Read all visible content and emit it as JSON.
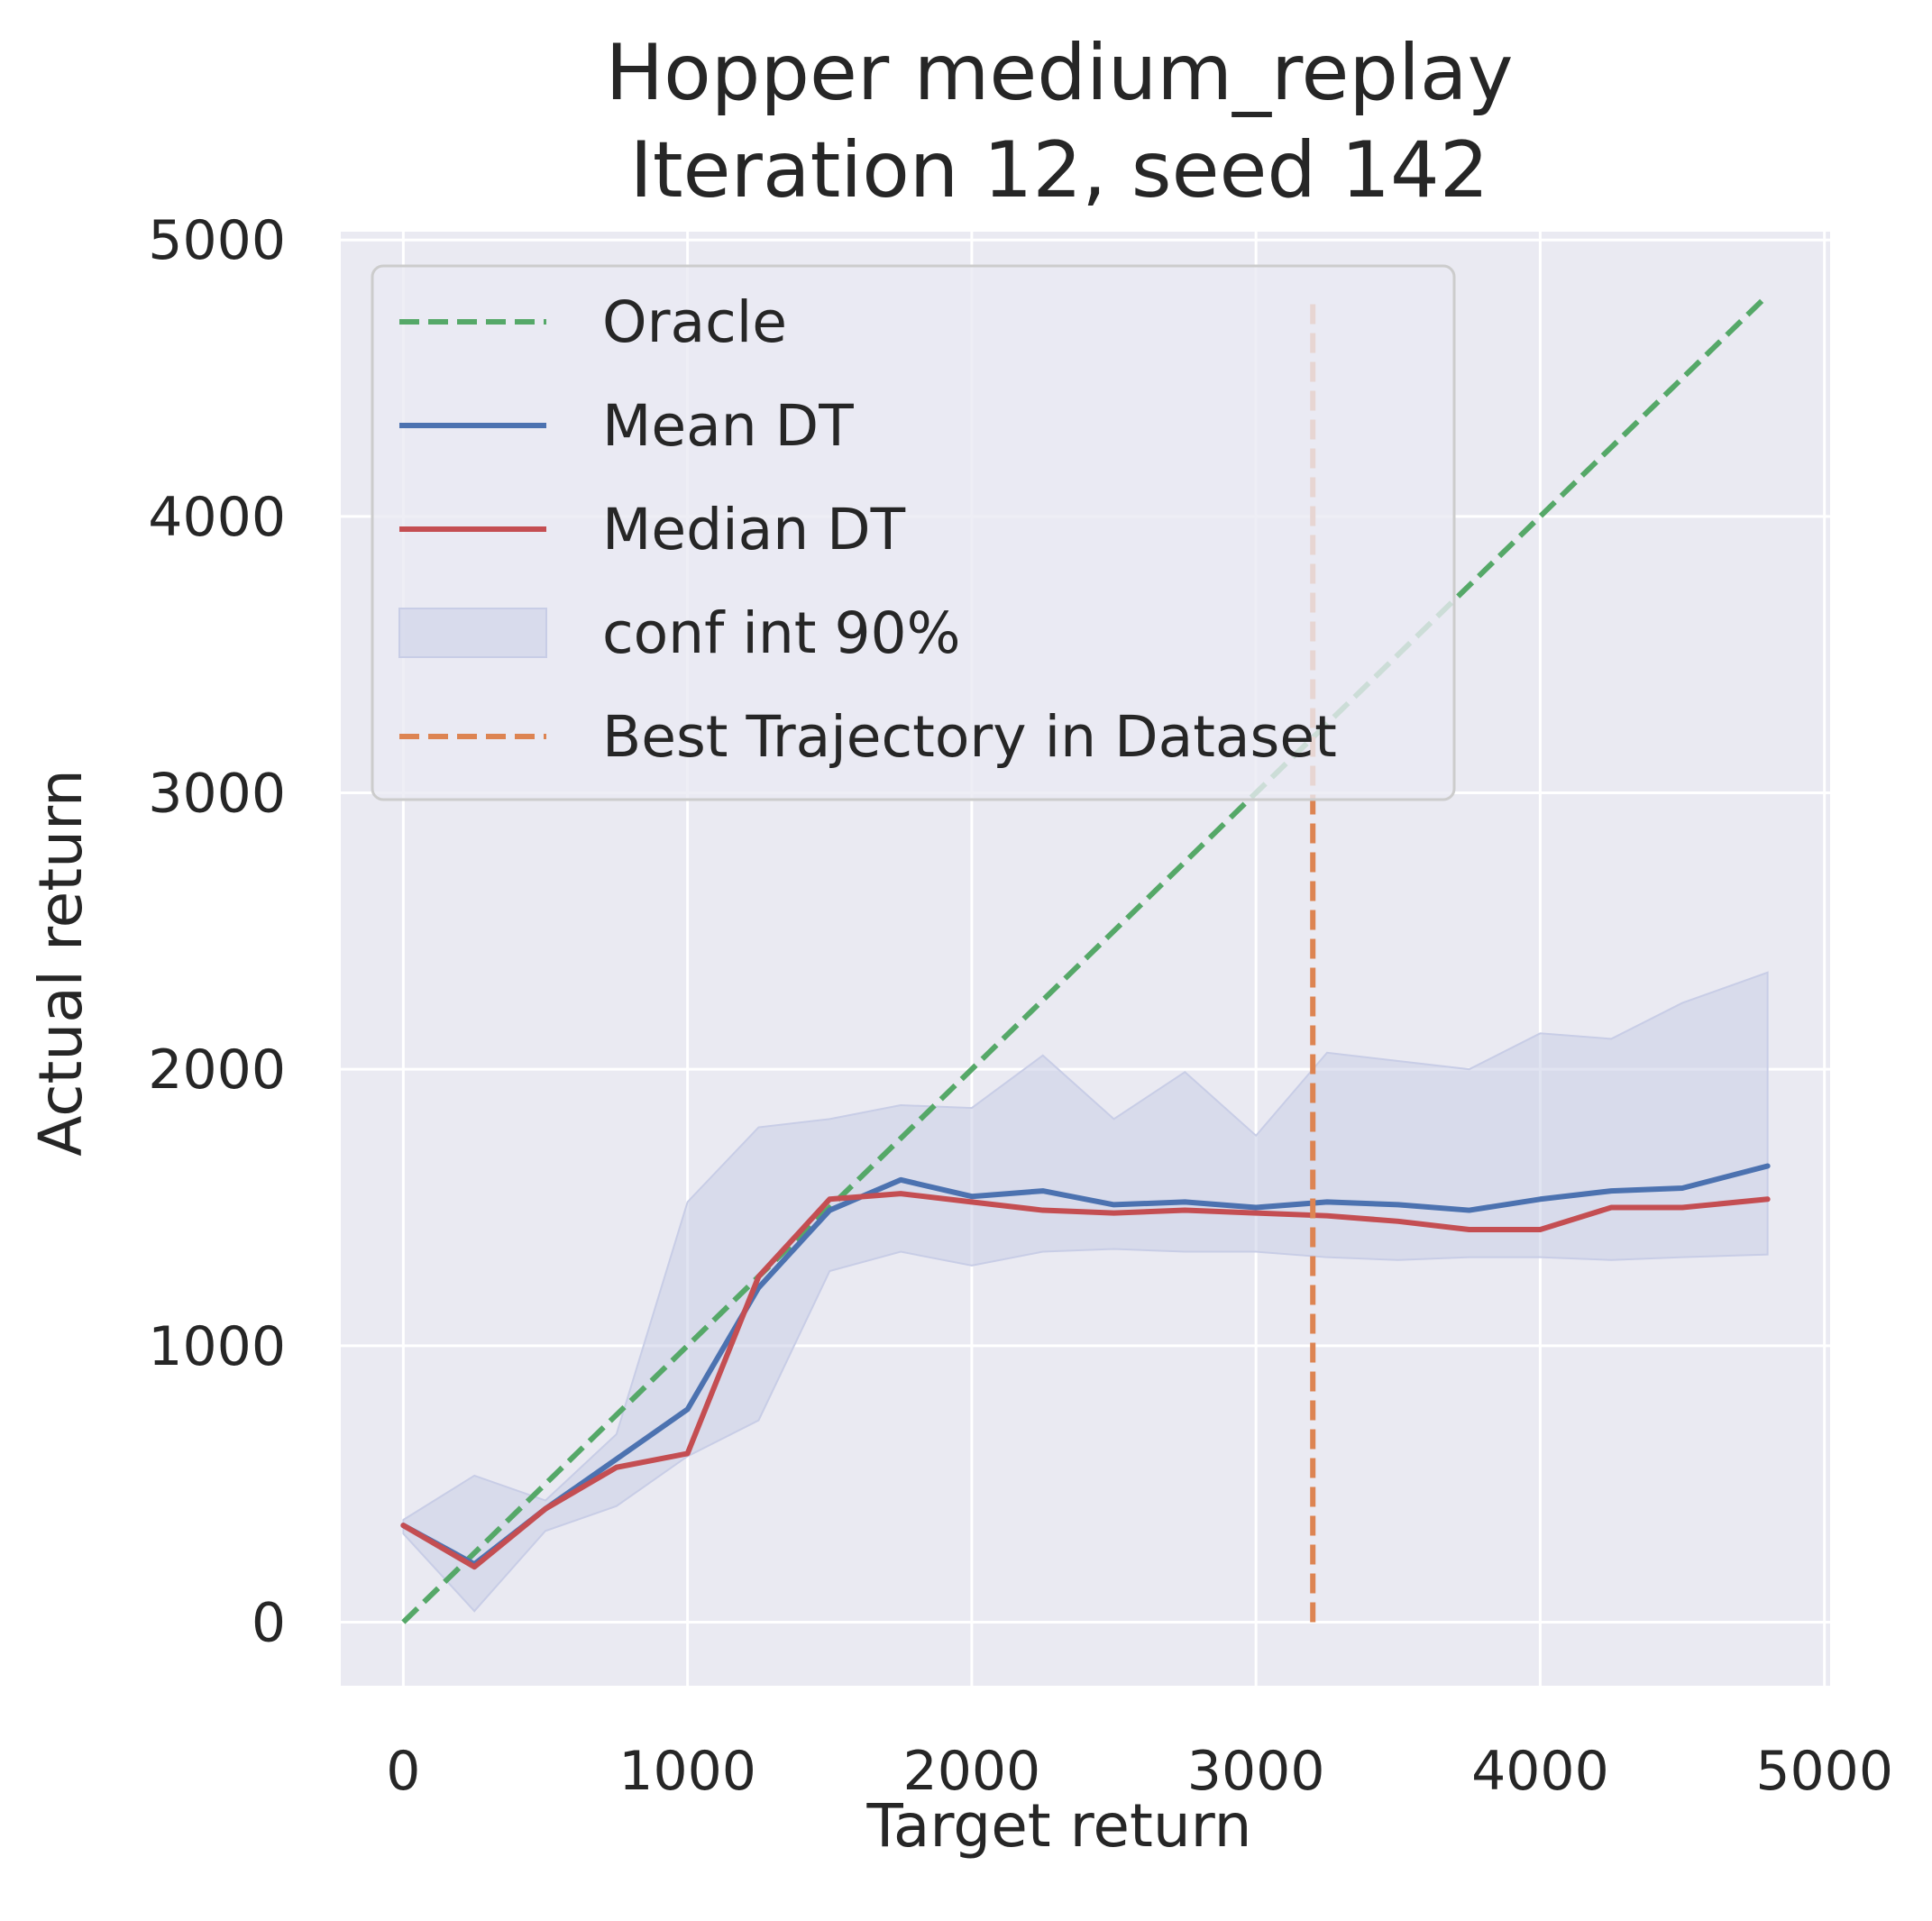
{
  "chart_data": {
    "type": "line",
    "title_lines": [
      "Hopper medium_replay",
      "Iteration 12, seed 142"
    ],
    "xlabel": "Target return",
    "ylabel": "Actual return",
    "xlim": [
      -220,
      5020
    ],
    "ylim": [
      -230,
      5030
    ],
    "xticks": [
      0,
      1000,
      2000,
      3000,
      4000,
      5000
    ],
    "yticks": [
      0,
      1000,
      2000,
      3000,
      4000,
      5000
    ],
    "xtick_labels": [
      "0",
      "1000",
      "2000",
      "3000",
      "4000",
      "5000"
    ],
    "ytick_labels": [
      "0",
      "1000",
      "2000",
      "3000",
      "4000",
      "5000"
    ],
    "grid": true,
    "legend_position": "top-left",
    "x": [
      0,
      250,
      500,
      750,
      1000,
      1250,
      1500,
      1750,
      2000,
      2250,
      2500,
      2750,
      3000,
      3250,
      3500,
      3750,
      4000,
      4250,
      4500,
      4800
    ],
    "series": [
      {
        "name": "Oracle",
        "kind": "line",
        "style": "dashed",
        "color": "#55a868",
        "x": [
          0,
          4800
        ],
        "values": [
          0,
          4800
        ]
      },
      {
        "name": "Mean DT",
        "kind": "line",
        "style": "solid",
        "color": "#4c72b0",
        "values": [
          350,
          210,
          410,
          590,
          770,
          1210,
          1490,
          1600,
          1540,
          1560,
          1510,
          1520,
          1500,
          1520,
          1510,
          1490,
          1530,
          1560,
          1570,
          1650
        ]
      },
      {
        "name": "Median DT",
        "kind": "line",
        "style": "solid",
        "color": "#c44e52",
        "values": [
          350,
          200,
          410,
          560,
          610,
          1250,
          1530,
          1550,
          1520,
          1490,
          1480,
          1490,
          1480,
          1470,
          1450,
          1420,
          1420,
          1500,
          1500,
          1530
        ]
      },
      {
        "name": "conf int 90%",
        "kind": "band",
        "color": "#c8cde6",
        "lower": [
          320,
          40,
          330,
          420,
          600,
          730,
          1270,
          1340,
          1290,
          1340,
          1350,
          1340,
          1340,
          1320,
          1310,
          1320,
          1320,
          1310,
          1320,
          1330
        ],
        "upper": [
          370,
          530,
          440,
          680,
          1520,
          1790,
          1820,
          1870,
          1860,
          2050,
          1820,
          1990,
          1760,
          2060,
          2030,
          2000,
          2130,
          2110,
          2240,
          2350
        ]
      },
      {
        "name": "Best Trajectory in Dataset",
        "kind": "vline",
        "style": "dashed",
        "color": "#dd8452",
        "x_value": 3200,
        "y_range": [
          0,
          4800
        ]
      }
    ]
  }
}
